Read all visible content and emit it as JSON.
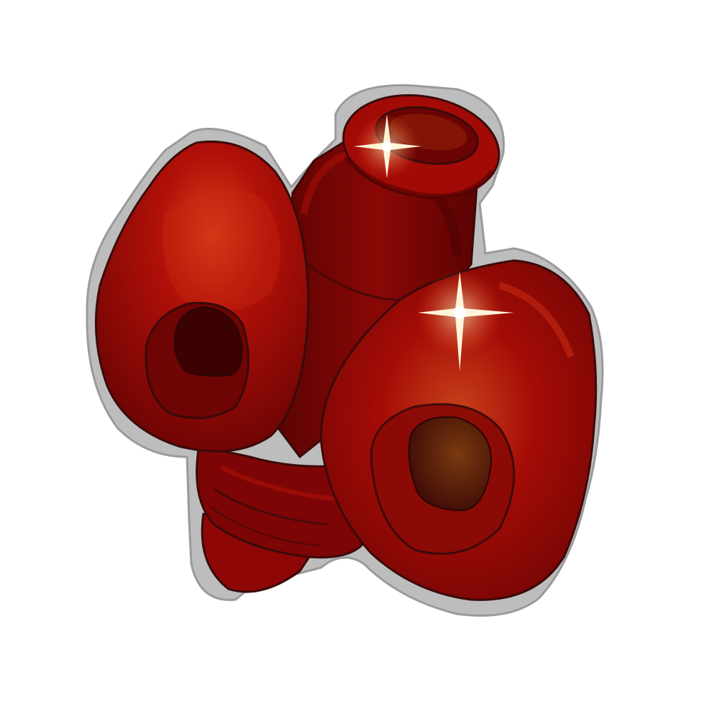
{
  "item": {
    "icon": "red-coral-icon",
    "colors": {
      "background": "#ffffff",
      "outline": "#bdbdbd",
      "stroke": "#3a0a0a",
      "body": "#9e0a06",
      "body_light": "#c41810",
      "body_dark": "#5e0404",
      "highlight": "#e0501e",
      "sparkle": "#fff4d8"
    }
  }
}
